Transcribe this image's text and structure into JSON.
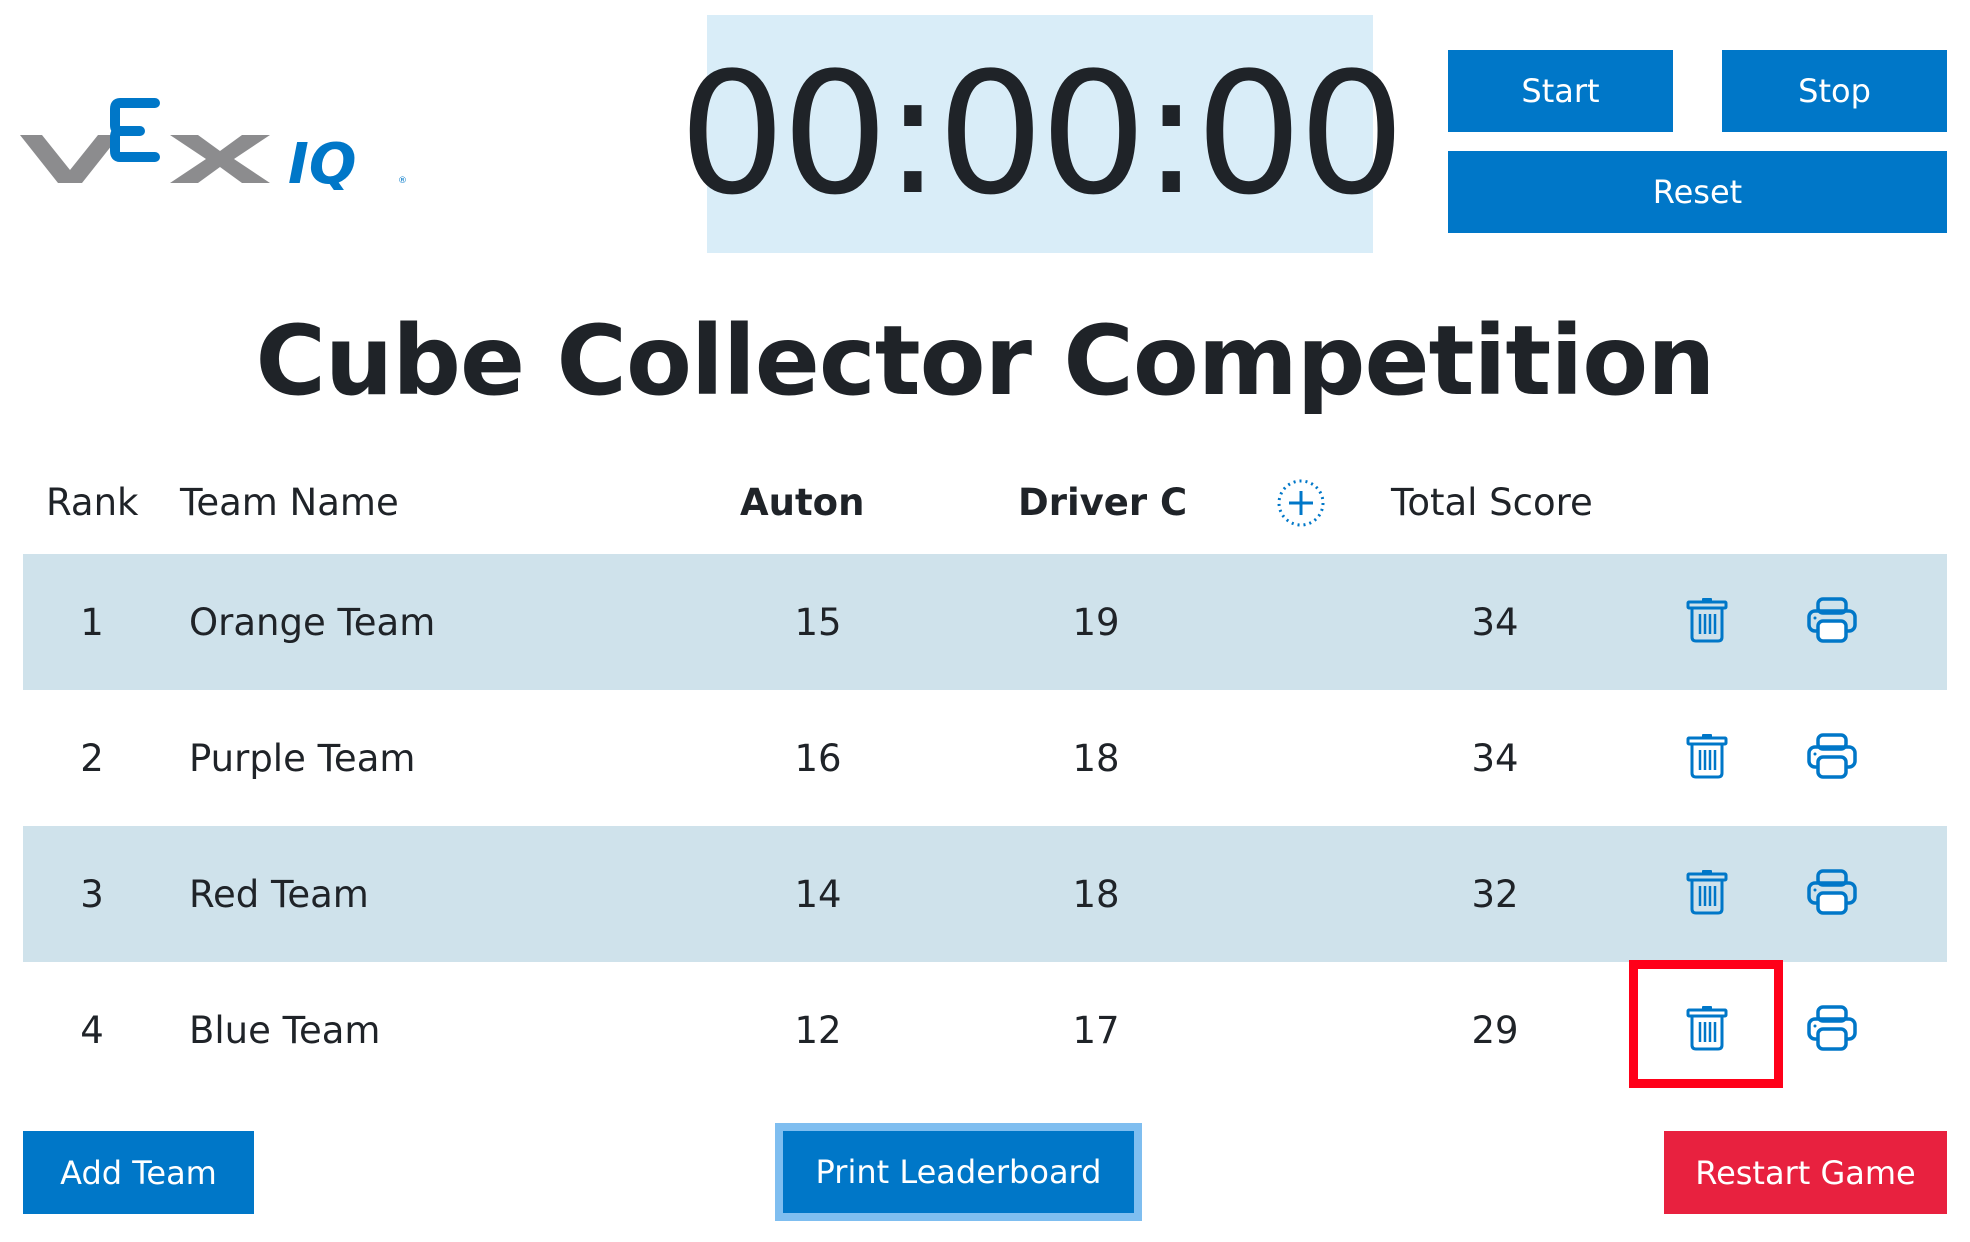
{
  "logo": {
    "text": "VEX IQ",
    "colors": {
      "gray": "#8c8c8e",
      "blue": "#0077c8"
    }
  },
  "timer": {
    "value": "00:00:00"
  },
  "controls": {
    "start": "Start",
    "stop": "Stop",
    "reset": "Reset"
  },
  "title": "Cube Collector Competition",
  "table": {
    "headers": {
      "rank": "Rank",
      "team": "Team Name",
      "auton": "Auton",
      "driver": "Driver C",
      "total": "Total Score"
    },
    "rows": [
      {
        "rank": "1",
        "team": "Orange Team",
        "auton": "15",
        "driver": "19",
        "total": "34"
      },
      {
        "rank": "2",
        "team": "Purple Team",
        "auton": "16",
        "driver": "18",
        "total": "34"
      },
      {
        "rank": "3",
        "team": "Red Team",
        "auton": "14",
        "driver": "18",
        "total": "32"
      },
      {
        "rank": "4",
        "team": "Blue Team",
        "auton": "12",
        "driver": "17",
        "total": "29"
      }
    ]
  },
  "footer": {
    "add_team": "Add Team",
    "print_leaderboard": "Print Leaderboard",
    "restart_game": "Restart Game"
  },
  "colors": {
    "accent": "#0077c8",
    "row_alt": "#cfe2eb",
    "timer_bg": "#d9edf8",
    "danger": "#e8213f",
    "highlight": "#ff0019"
  }
}
